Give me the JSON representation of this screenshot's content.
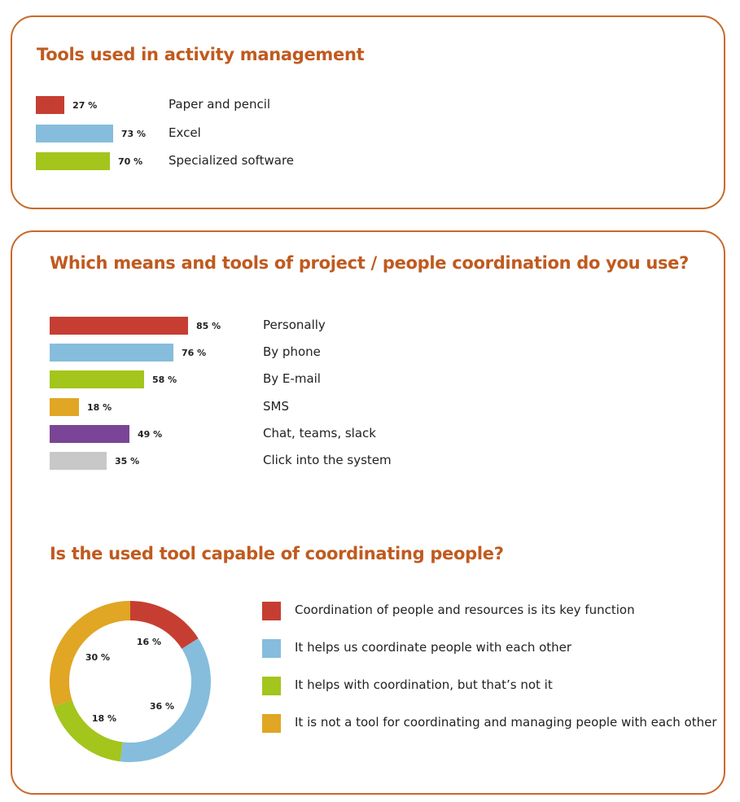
{
  "chart_data": [
    {
      "type": "bar",
      "orientation": "horizontal",
      "title": "Tools used in activity management",
      "categories": [
        "Paper and pencil",
        "Excel",
        "Specialized software"
      ],
      "values": [
        27,
        73,
        70
      ],
      "value_labels": [
        "27 %",
        "73 %",
        "70 %"
      ],
      "colors": [
        "#c63e32",
        "#86bddc",
        "#a3c51c"
      ],
      "xlim": [
        0,
        100
      ]
    },
    {
      "type": "bar",
      "orientation": "horizontal",
      "title": "Which means and tools of project / people coordination do you use?",
      "categories": [
        "Personally",
        "By phone",
        "By E-mail",
        "SMS",
        "Chat, teams, slack",
        "Click into the system"
      ],
      "values": [
        85,
        76,
        58,
        18,
        49,
        35
      ],
      "value_labels": [
        "85 %",
        "76 %",
        "58 %",
        "18 %",
        "49 %",
        "35 %"
      ],
      "colors": [
        "#c63e32",
        "#86bddc",
        "#a3c51c",
        "#e0a624",
        "#7a4596",
        "#c8c8c8"
      ],
      "xlim": [
        0,
        100
      ]
    },
    {
      "type": "pie",
      "style": "donut",
      "title": "Is the used tool capable of coordinating people?",
      "categories": [
        "Coordination of people and resources is its key function",
        "It helps us coordinate people with each other",
        "It helps with coordination, but that’s not it",
        "It is not a tool for coordinating and managing people with each other"
      ],
      "values": [
        16,
        36,
        18,
        30
      ],
      "value_labels": [
        "16 %",
        "36 %",
        "18 %",
        "30 %"
      ],
      "colors": [
        "#c63e32",
        "#86bddc",
        "#a3c51c",
        "#e0a624"
      ],
      "legend": "right"
    }
  ]
}
